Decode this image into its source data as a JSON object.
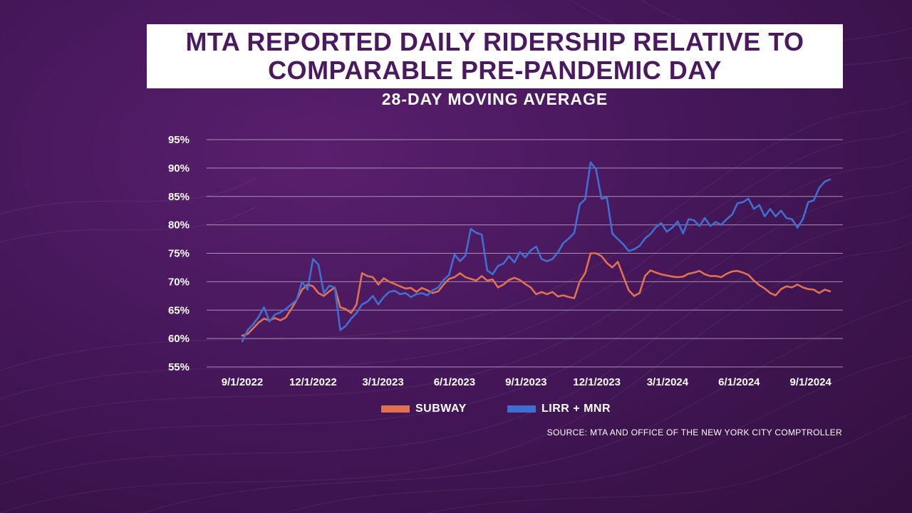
{
  "title_lines": [
    "MTA REPORTED DAILY RIDERSHIP RELATIVE TO",
    "COMPARABLE PRE-PANDEMIC DAY"
  ],
  "subtitle": "28-DAY MOVING AVERAGE",
  "source": "SOURCE: MTA AND OFFICE OF THE NEW YORK CITY COMPTROLLER",
  "colors": {
    "subway": "#e2714f",
    "lirr_mnr": "#3f6fd1",
    "title": "#4b1960",
    "grid": "#c8b7cf"
  },
  "chart_data": {
    "type": "line",
    "title": "MTA REPORTED DAILY RIDERSHIP RELATIVE TO COMPARABLE PRE-PANDEMIC DAY",
    "subtitle": "28-DAY MOVING AVERAGE",
    "xlabel": "",
    "ylabel": "",
    "ylim": [
      55,
      95
    ],
    "yticks": [
      55,
      60,
      65,
      70,
      75,
      80,
      85,
      90,
      95
    ],
    "ytick_labels": [
      "55%",
      "60%",
      "65%",
      "70%",
      "75%",
      "80%",
      "85%",
      "90%",
      "95%"
    ],
    "xtick_labels": [
      "9/1/2022",
      "12/1/2022",
      "3/1/2023",
      "6/1/2023",
      "9/1/2023",
      "12/1/2023",
      "3/1/2024",
      "6/1/2024",
      "9/1/2024"
    ],
    "grid": true,
    "legend_position": "bottom",
    "series": [
      {
        "name": "SUBWAY",
        "points": [
          [
            "2022-09-01",
            60.5
          ],
          [
            "2022-09-08",
            60.8
          ],
          [
            "2022-09-15",
            61.8
          ],
          [
            "2022-09-22",
            62.8
          ],
          [
            "2022-09-29",
            63.5
          ],
          [
            "2022-10-06",
            63.2
          ],
          [
            "2022-10-13",
            63.6
          ],
          [
            "2022-10-20",
            63.2
          ],
          [
            "2022-10-27",
            63.7
          ],
          [
            "2022-11-03",
            65.2
          ],
          [
            "2022-11-10",
            66.8
          ],
          [
            "2022-11-17",
            68.6
          ],
          [
            "2022-11-24",
            69.5
          ],
          [
            "2022-12-01",
            69.2
          ],
          [
            "2022-12-08",
            68.0
          ],
          [
            "2022-12-15",
            67.5
          ],
          [
            "2022-12-22",
            68.3
          ],
          [
            "2022-12-29",
            69.0
          ],
          [
            "2023-01-05",
            65.5
          ],
          [
            "2023-01-12",
            65.2
          ],
          [
            "2023-01-19",
            64.5
          ],
          [
            "2023-01-26",
            66.0
          ],
          [
            "2023-02-02",
            71.5
          ],
          [
            "2023-02-09",
            71.0
          ],
          [
            "2023-02-16",
            70.8
          ],
          [
            "2023-02-23",
            69.5
          ],
          [
            "2023-03-02",
            70.6
          ],
          [
            "2023-03-09",
            70.0
          ],
          [
            "2023-03-16",
            69.6
          ],
          [
            "2023-03-23",
            69.2
          ],
          [
            "2023-03-30",
            68.8
          ],
          [
            "2023-04-06",
            68.9
          ],
          [
            "2023-04-13",
            68.2
          ],
          [
            "2023-04-20",
            68.9
          ],
          [
            "2023-04-27",
            68.5
          ],
          [
            "2023-05-04",
            68.0
          ],
          [
            "2023-05-11",
            68.3
          ],
          [
            "2023-05-18",
            69.5
          ],
          [
            "2023-05-25",
            70.5
          ],
          [
            "2023-06-01",
            70.8
          ],
          [
            "2023-06-08",
            71.5
          ],
          [
            "2023-06-15",
            70.8
          ],
          [
            "2023-06-22",
            70.5
          ],
          [
            "2023-06-29",
            70.2
          ],
          [
            "2023-07-06",
            71.0
          ],
          [
            "2023-07-13",
            70.2
          ],
          [
            "2023-07-20",
            70.4
          ],
          [
            "2023-07-27",
            69.0
          ],
          [
            "2023-08-03",
            69.5
          ],
          [
            "2023-08-10",
            70.3
          ],
          [
            "2023-08-17",
            70.7
          ],
          [
            "2023-08-24",
            70.3
          ],
          [
            "2023-08-31",
            69.6
          ],
          [
            "2023-09-07",
            69.0
          ],
          [
            "2023-09-14",
            67.8
          ],
          [
            "2023-09-21",
            68.2
          ],
          [
            "2023-09-28",
            67.8
          ],
          [
            "2023-10-05",
            68.2
          ],
          [
            "2023-10-12",
            67.4
          ],
          [
            "2023-10-19",
            67.6
          ],
          [
            "2023-10-26",
            67.3
          ],
          [
            "2023-11-02",
            67.1
          ],
          [
            "2023-11-09",
            70.0
          ],
          [
            "2023-11-16",
            71.5
          ],
          [
            "2023-11-23",
            75.0
          ],
          [
            "2023-11-30",
            75.0
          ],
          [
            "2023-12-07",
            74.5
          ],
          [
            "2023-12-14",
            73.3
          ],
          [
            "2023-12-21",
            72.5
          ],
          [
            "2023-12-28",
            73.5
          ],
          [
            "2024-01-04",
            71.0
          ],
          [
            "2024-01-11",
            68.5
          ],
          [
            "2024-01-18",
            67.5
          ],
          [
            "2024-01-25",
            68.0
          ],
          [
            "2024-02-01",
            71.0
          ],
          [
            "2024-02-08",
            72.0
          ],
          [
            "2024-02-15",
            71.6
          ],
          [
            "2024-02-22",
            71.3
          ],
          [
            "2024-02-29",
            71.1
          ],
          [
            "2024-03-07",
            70.9
          ],
          [
            "2024-03-14",
            70.8
          ],
          [
            "2024-03-21",
            70.9
          ],
          [
            "2024-03-28",
            71.4
          ],
          [
            "2024-04-04",
            71.6
          ],
          [
            "2024-04-11",
            71.9
          ],
          [
            "2024-04-18",
            71.3
          ],
          [
            "2024-04-25",
            71.0
          ],
          [
            "2024-05-02",
            71.0
          ],
          [
            "2024-05-09",
            70.8
          ],
          [
            "2024-05-16",
            71.4
          ],
          [
            "2024-05-23",
            71.8
          ],
          [
            "2024-05-30",
            71.9
          ],
          [
            "2024-06-06",
            71.6
          ],
          [
            "2024-06-13",
            71.2
          ],
          [
            "2024-06-20",
            70.2
          ],
          [
            "2024-06-27",
            69.4
          ],
          [
            "2024-07-04",
            68.8
          ],
          [
            "2024-07-11",
            68.0
          ],
          [
            "2024-07-18",
            67.6
          ],
          [
            "2024-07-25",
            68.7
          ],
          [
            "2024-08-01",
            69.2
          ],
          [
            "2024-08-08",
            69.0
          ],
          [
            "2024-08-15",
            69.5
          ],
          [
            "2024-08-22",
            69.0
          ],
          [
            "2024-08-29",
            68.7
          ],
          [
            "2024-09-05",
            68.6
          ],
          [
            "2024-09-12",
            68.0
          ],
          [
            "2024-09-19",
            68.6
          ],
          [
            "2024-09-26",
            68.3
          ]
        ]
      },
      {
        "name": "LIRR + MNR",
        "points": [
          [
            "2022-09-01",
            59.5
          ],
          [
            "2022-09-08",
            61.5
          ],
          [
            "2022-09-15",
            62.5
          ],
          [
            "2022-09-22",
            63.8
          ],
          [
            "2022-09-29",
            65.5
          ],
          [
            "2022-10-06",
            63.0
          ],
          [
            "2022-10-13",
            64.2
          ],
          [
            "2022-10-20",
            64.6
          ],
          [
            "2022-10-27",
            65.2
          ],
          [
            "2022-11-03",
            66.0
          ],
          [
            "2022-11-10",
            66.8
          ],
          [
            "2022-11-17",
            70.0
          ],
          [
            "2022-11-24",
            68.6
          ],
          [
            "2022-12-01",
            74.0
          ],
          [
            "2022-12-08",
            73.0
          ],
          [
            "2022-12-15",
            68.0
          ],
          [
            "2022-12-22",
            69.3
          ],
          [
            "2022-12-29",
            69.0
          ],
          [
            "2023-01-05",
            61.5
          ],
          [
            "2023-01-12",
            62.2
          ],
          [
            "2023-01-19",
            63.5
          ],
          [
            "2023-01-26",
            64.5
          ],
          [
            "2023-02-02",
            66.0
          ],
          [
            "2023-02-09",
            66.5
          ],
          [
            "2023-02-16",
            67.5
          ],
          [
            "2023-02-23",
            66.0
          ],
          [
            "2023-03-02",
            67.3
          ],
          [
            "2023-03-09",
            68.2
          ],
          [
            "2023-03-16",
            68.4
          ],
          [
            "2023-03-23",
            67.8
          ],
          [
            "2023-03-30",
            68.0
          ],
          [
            "2023-04-06",
            67.3
          ],
          [
            "2023-04-13",
            67.8
          ],
          [
            "2023-04-20",
            68.0
          ],
          [
            "2023-04-27",
            67.6
          ],
          [
            "2023-05-04",
            68.5
          ],
          [
            "2023-05-11",
            69.0
          ],
          [
            "2023-05-18",
            70.3
          ],
          [
            "2023-05-25",
            71.2
          ],
          [
            "2023-06-01",
            74.8
          ],
          [
            "2023-06-08",
            73.6
          ],
          [
            "2023-06-15",
            74.6
          ],
          [
            "2023-06-22",
            79.3
          ],
          [
            "2023-06-29",
            78.6
          ],
          [
            "2023-07-06",
            78.3
          ],
          [
            "2023-07-13",
            72.0
          ],
          [
            "2023-07-20",
            71.3
          ],
          [
            "2023-07-27",
            72.8
          ],
          [
            "2023-08-03",
            73.2
          ],
          [
            "2023-08-10",
            74.5
          ],
          [
            "2023-08-17",
            73.4
          ],
          [
            "2023-08-24",
            75.2
          ],
          [
            "2023-08-31",
            74.3
          ],
          [
            "2023-09-07",
            75.5
          ],
          [
            "2023-09-14",
            76.2
          ],
          [
            "2023-09-21",
            74.0
          ],
          [
            "2023-09-28",
            73.6
          ],
          [
            "2023-10-05",
            74.0
          ],
          [
            "2023-10-12",
            75.2
          ],
          [
            "2023-10-19",
            76.8
          ],
          [
            "2023-10-26",
            77.6
          ],
          [
            "2023-11-02",
            78.6
          ],
          [
            "2023-11-09",
            83.6
          ],
          [
            "2023-11-16",
            84.5
          ],
          [
            "2023-11-23",
            91.0
          ],
          [
            "2023-11-30",
            89.8
          ],
          [
            "2023-12-07",
            84.6
          ],
          [
            "2023-12-14",
            84.8
          ],
          [
            "2023-12-21",
            78.5
          ],
          [
            "2023-12-28",
            77.5
          ],
          [
            "2024-01-04",
            76.6
          ],
          [
            "2024-01-11",
            75.4
          ],
          [
            "2024-01-18",
            75.7
          ],
          [
            "2024-01-25",
            76.3
          ],
          [
            "2024-02-01",
            77.6
          ],
          [
            "2024-02-08",
            78.4
          ],
          [
            "2024-02-15",
            79.6
          ],
          [
            "2024-02-22",
            80.3
          ],
          [
            "2024-02-29",
            78.8
          ],
          [
            "2024-03-07",
            79.5
          ],
          [
            "2024-03-14",
            80.6
          ],
          [
            "2024-03-21",
            78.5
          ],
          [
            "2024-03-28",
            81.0
          ],
          [
            "2024-04-04",
            80.8
          ],
          [
            "2024-04-11",
            79.8
          ],
          [
            "2024-04-18",
            81.2
          ],
          [
            "2024-04-25",
            79.8
          ],
          [
            "2024-05-02",
            80.5
          ],
          [
            "2024-05-09",
            80.0
          ],
          [
            "2024-05-16",
            81.0
          ],
          [
            "2024-05-23",
            81.8
          ],
          [
            "2024-05-30",
            83.8
          ],
          [
            "2024-06-06",
            84.0
          ],
          [
            "2024-06-13",
            84.6
          ],
          [
            "2024-06-20",
            82.8
          ],
          [
            "2024-06-27",
            83.5
          ],
          [
            "2024-07-04",
            81.5
          ],
          [
            "2024-07-11",
            82.8
          ],
          [
            "2024-07-18",
            81.5
          ],
          [
            "2024-07-25",
            82.5
          ],
          [
            "2024-08-01",
            81.2
          ],
          [
            "2024-08-08",
            81.0
          ],
          [
            "2024-08-15",
            79.5
          ],
          [
            "2024-08-22",
            81.0
          ],
          [
            "2024-08-29",
            84.0
          ],
          [
            "2024-09-05",
            84.3
          ],
          [
            "2024-09-12",
            86.5
          ],
          [
            "2024-09-19",
            87.6
          ],
          [
            "2024-09-26",
            88.0
          ]
        ]
      }
    ]
  },
  "legend": [
    {
      "label": "SUBWAY",
      "color": "#e2714f"
    },
    {
      "label": "LIRR + MNR",
      "color": "#3f6fd1"
    }
  ]
}
